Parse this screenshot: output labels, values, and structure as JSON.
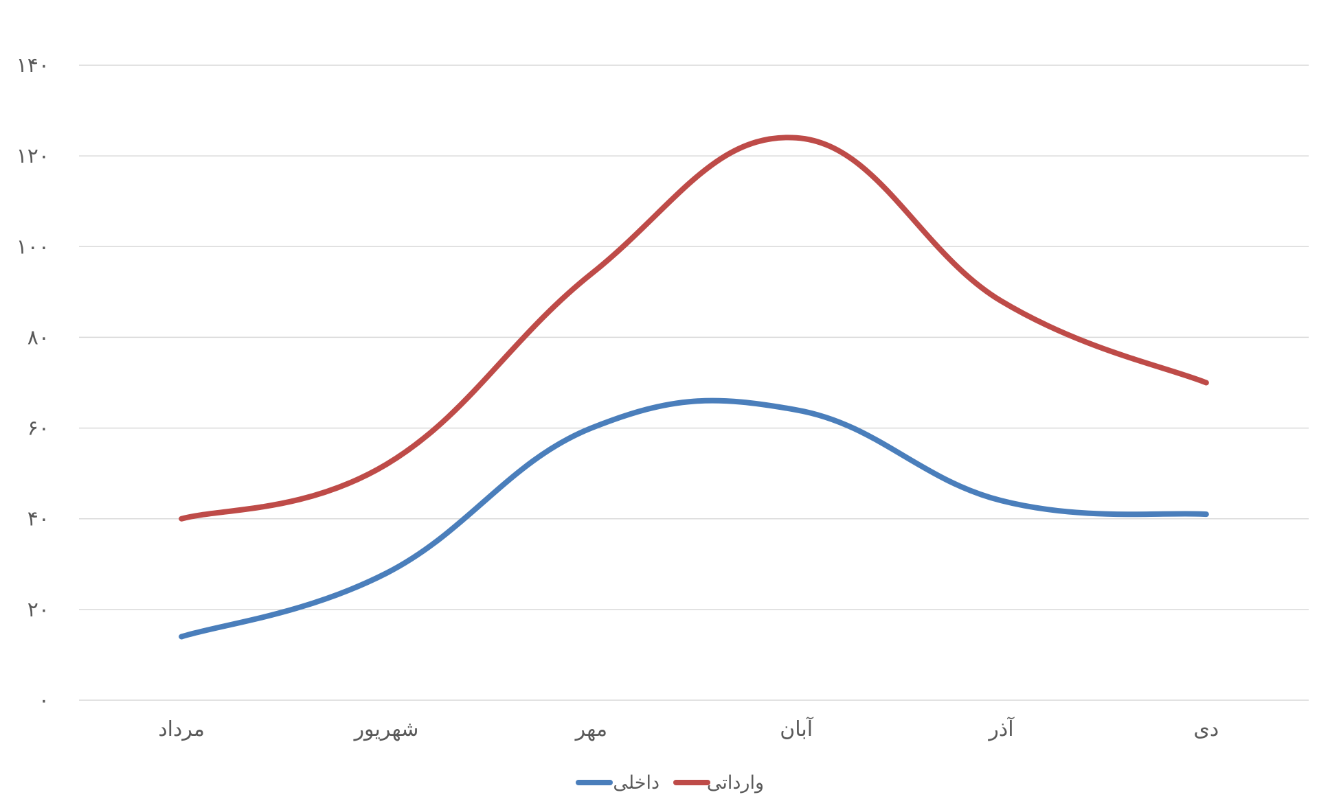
{
  "chart_data": {
    "type": "line",
    "smooth": true,
    "categories": [
      "مرداد",
      "شهریور",
      "مهر",
      "آبان",
      "آذر",
      "دی"
    ],
    "series": [
      {
        "name": "داخلی",
        "color": "#4a7ebb",
        "values": [
          14,
          28,
          60,
          64,
          44,
          41
        ]
      },
      {
        "name": "وارداتی",
        "color": "#be4b48",
        "values": [
          40,
          52,
          94,
          124,
          88,
          70
        ]
      }
    ],
    "ylim": [
      0,
      140
    ],
    "yticks": [
      {
        "value": 0,
        "label": "۰"
      },
      {
        "value": 20,
        "label": "۲۰"
      },
      {
        "value": 40,
        "label": "۴۰"
      },
      {
        "value": 60,
        "label": "۶۰"
      },
      {
        "value": 80,
        "label": "۸۰"
      },
      {
        "value": 100,
        "label": "۱۰۰"
      },
      {
        "value": 120,
        "label": "۱۲۰"
      },
      {
        "value": 140,
        "label": "۱۴۰"
      }
    ],
    "title": "",
    "xlabel": "",
    "ylabel": "",
    "grid": "horizontal",
    "legend": {
      "position": "bottom",
      "direction": "rtl"
    }
  }
}
